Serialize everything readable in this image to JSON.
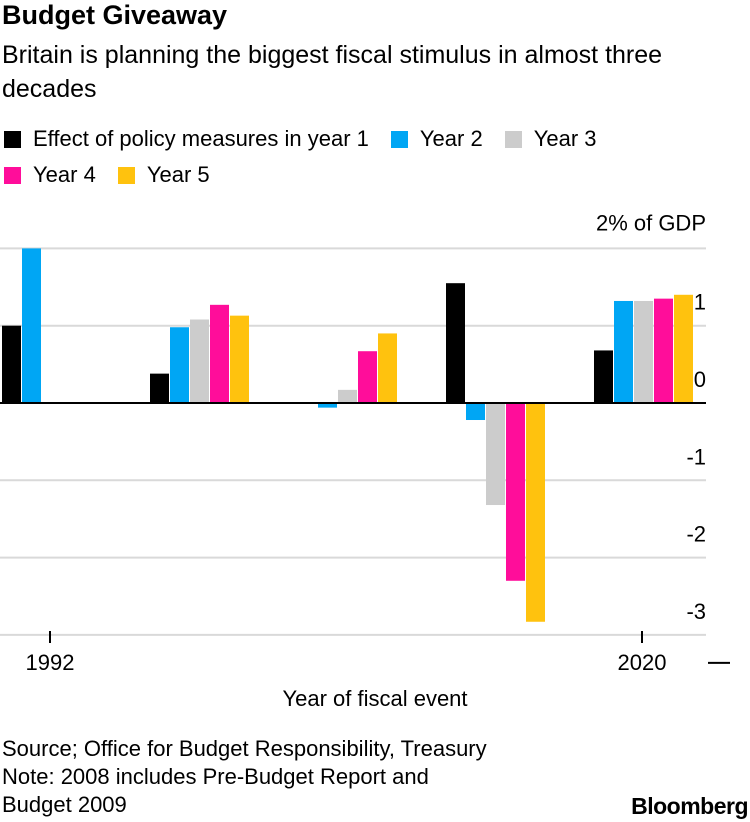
{
  "header": {
    "title": "Budget Giveaway",
    "subtitle": "Britain is planning the biggest fiscal stimulus in almost three decades"
  },
  "legend": [
    {
      "label": "Effect of policy measures in year 1",
      "color": "#000000"
    },
    {
      "label": "Year 2",
      "color": "#00A6F4"
    },
    {
      "label": "Year 3",
      "color": "#CCCCCC"
    },
    {
      "label": "Year 4",
      "color": "#FF0D9A"
    },
    {
      "label": "Year 5",
      "color": "#FFC20E"
    }
  ],
  "footer": {
    "source": "Source; Office for Budget Responsibility, Treasury",
    "note_line1": "Note: 2008 includes Pre-Budget Report and",
    "note_line2": "Budget 2009",
    "brand": "Bloomberg"
  },
  "chart_data": {
    "type": "bar",
    "xlabel": "Year of fiscal event",
    "ylabel": "2% of GDP",
    "ylim": [
      -3,
      2
    ],
    "yticks": [
      {
        "value": 2,
        "label": "2% of GDP"
      },
      {
        "value": 1,
        "label": "1"
      },
      {
        "value": 0,
        "label": "0"
      },
      {
        "value": -1,
        "label": "-1"
      },
      {
        "value": -2,
        "label": "-2"
      },
      {
        "value": -3,
        "label": "-3"
      }
    ],
    "xtick_labels": [
      "1992",
      "2020"
    ],
    "grid": true,
    "events": [
      {
        "label": "1992",
        "values": [
          1.0,
          2.0,
          0,
          0,
          0
        ]
      },
      {
        "values": [
          0.38,
          0.98,
          1.08,
          1.27,
          1.13
        ]
      },
      {
        "values": [
          0.0,
          -0.06,
          0.17,
          0.67,
          0.9
        ]
      },
      {
        "values": [
          1.55,
          -0.22,
          -1.32,
          -2.3,
          -2.83
        ]
      },
      {
        "label": "2020",
        "values": [
          0.68,
          1.32,
          1.32,
          1.35,
          1.4
        ]
      }
    ],
    "series": [
      {
        "name": "Effect of policy measures in year 1",
        "color": "#000000"
      },
      {
        "name": "Year 2",
        "color": "#00A6F4"
      },
      {
        "name": "Year 3",
        "color": "#CCCCCC"
      },
      {
        "name": "Year 4",
        "color": "#FF0D9A"
      },
      {
        "name": "Year 5",
        "color": "#FFC20E"
      }
    ]
  }
}
